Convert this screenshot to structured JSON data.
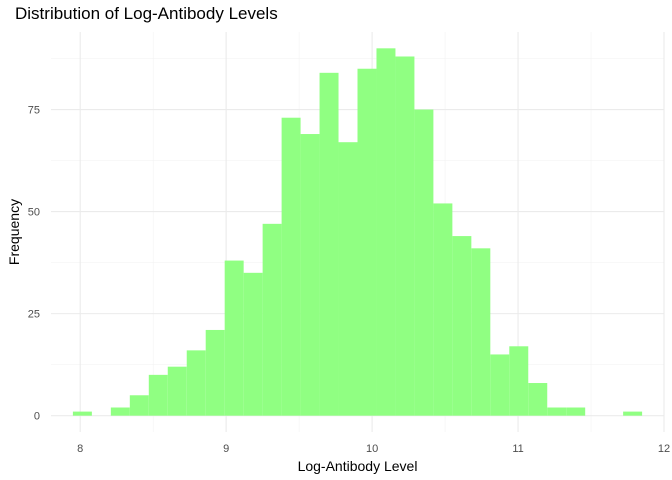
{
  "chart_data": {
    "type": "bar",
    "title": "Distribution of Log-Antibody Levels",
    "xlabel": "Log-Antibody Level",
    "ylabel": "Frequency",
    "xlim": [
      7.8,
      12.0
    ],
    "ylim": [
      -4,
      94
    ],
    "x_ticks": [
      8,
      9,
      10,
      11,
      12
    ],
    "y_ticks": [
      0,
      25,
      50,
      75
    ],
    "grid": true,
    "bar_color": "#90ff82",
    "bins": [
      {
        "start": 7.95,
        "end": 8.08,
        "count": 1
      },
      {
        "start": 8.08,
        "end": 8.21,
        "count": 0
      },
      {
        "start": 8.21,
        "end": 8.34,
        "count": 2
      },
      {
        "start": 8.34,
        "end": 8.47,
        "count": 5
      },
      {
        "start": 8.47,
        "end": 8.6,
        "count": 10
      },
      {
        "start": 8.6,
        "end": 8.73,
        "count": 12
      },
      {
        "start": 8.73,
        "end": 8.86,
        "count": 16
      },
      {
        "start": 8.86,
        "end": 8.99,
        "count": 21
      },
      {
        "start": 8.99,
        "end": 9.12,
        "count": 38
      },
      {
        "start": 9.12,
        "end": 9.25,
        "count": 35
      },
      {
        "start": 9.25,
        "end": 9.38,
        "count": 47
      },
      {
        "start": 9.38,
        "end": 9.51,
        "count": 73
      },
      {
        "start": 9.51,
        "end": 9.64,
        "count": 69
      },
      {
        "start": 9.64,
        "end": 9.77,
        "count": 84
      },
      {
        "start": 9.77,
        "end": 9.9,
        "count": 67
      },
      {
        "start": 9.9,
        "end": 10.03,
        "count": 85
      },
      {
        "start": 10.03,
        "end": 10.16,
        "count": 90
      },
      {
        "start": 10.16,
        "end": 10.29,
        "count": 88
      },
      {
        "start": 10.29,
        "end": 10.42,
        "count": 75
      },
      {
        "start": 10.42,
        "end": 10.55,
        "count": 52
      },
      {
        "start": 10.55,
        "end": 10.68,
        "count": 44
      },
      {
        "start": 10.68,
        "end": 10.81,
        "count": 41
      },
      {
        "start": 10.81,
        "end": 10.94,
        "count": 15
      },
      {
        "start": 10.94,
        "end": 11.07,
        "count": 17
      },
      {
        "start": 11.07,
        "end": 11.2,
        "count": 8
      },
      {
        "start": 11.2,
        "end": 11.33,
        "count": 2
      },
      {
        "start": 11.33,
        "end": 11.46,
        "count": 2
      },
      {
        "start": 11.46,
        "end": 11.59,
        "count": 0
      },
      {
        "start": 11.59,
        "end": 11.72,
        "count": 0
      },
      {
        "start": 11.72,
        "end": 11.85,
        "count": 1
      }
    ]
  }
}
